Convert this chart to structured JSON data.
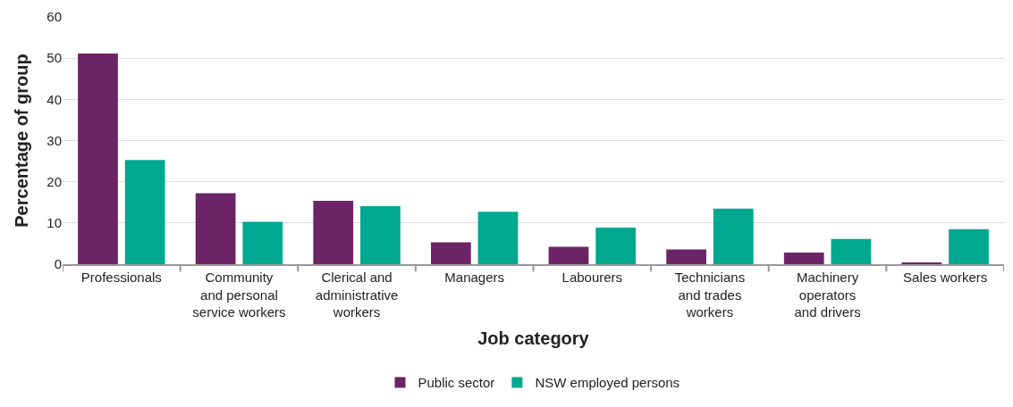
{
  "chart_data": {
    "type": "bar",
    "xlabel": "Job category",
    "ylabel": "Percentage of group",
    "categories": [
      "Professionals",
      "Community\nand personal\nservice workers",
      "Clerical and\nadministrative\nworkers",
      "Managers",
      "Labourers",
      "Technicians\nand trades\nworkers",
      "Machinery\noperators\nand drivers",
      "Sales workers"
    ],
    "series": [
      {
        "name": "Public sector",
        "color": "#6b2567",
        "values": [
          51.1,
          17.2,
          15.4,
          5.3,
          4.2,
          3.6,
          2.8,
          0.4
        ]
      },
      {
        "name": "NSW employed persons",
        "color": "#00a88f",
        "values": [
          25.3,
          10.3,
          14.1,
          12.7,
          8.9,
          13.5,
          6.1,
          8.5
        ]
      }
    ],
    "ylim": [
      0,
      60
    ],
    "yticks": [
      0,
      10,
      20,
      30,
      40,
      50,
      60
    ],
    "grid": "y",
    "legend": "bottom"
  }
}
